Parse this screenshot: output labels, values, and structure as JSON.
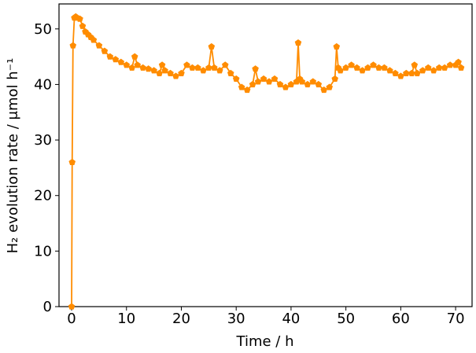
{
  "chart_data": {
    "type": "line",
    "xlabel": "Time / h",
    "ylabel": "H₂ evolution rate / μmol h⁻¹",
    "x": [
      0,
      0.1,
      0.25,
      0.5,
      0.75,
      1,
      1.5,
      2,
      2.5,
      3,
      3.5,
      4,
      5,
      6,
      7,
      8,
      9,
      10,
      11,
      11.5,
      12,
      13,
      14,
      15,
      16,
      16.5,
      17,
      18,
      19,
      20,
      21,
      22,
      23,
      24,
      25,
      25.5,
      26,
      27,
      28,
      29,
      30,
      31,
      32,
      33,
      33.5,
      34,
      35,
      36,
      37,
      38,
      39,
      40,
      41,
      41.3,
      41.6,
      42,
      43,
      44,
      45,
      46,
      47,
      48,
      48.3,
      48.6,
      49,
      50,
      51,
      52,
      53,
      54,
      55,
      56,
      57,
      58,
      59,
      60,
      61,
      62,
      62.5,
      63,
      64,
      65,
      66,
      67,
      68,
      69,
      70,
      70.5,
      71
    ],
    "series": [
      {
        "name": "H2",
        "color": "#ff8c00",
        "values": [
          0,
          26,
          47,
          52,
          52.2,
          52,
          51.8,
          50.5,
          49.5,
          49,
          48.5,
          48,
          47,
          46,
          45,
          44.5,
          44,
          43.5,
          43,
          45,
          43.5,
          43,
          42.8,
          42.5,
          42,
          43.5,
          42.5,
          42,
          41.5,
          42,
          43.5,
          43,
          43,
          42.5,
          43,
          46.8,
          43,
          42.5,
          43.5,
          42,
          41,
          39.5,
          39,
          40,
          42.8,
          40.5,
          41,
          40.5,
          41,
          40,
          39.5,
          40,
          40.5,
          47.5,
          41,
          40.5,
          40,
          40.5,
          40,
          39,
          39.5,
          41,
          46.8,
          43,
          42.5,
          43,
          43.5,
          43,
          42.5,
          43,
          43.5,
          43,
          43,
          42.5,
          42,
          41.5,
          42,
          42,
          43.5,
          42,
          42.5,
          43,
          42.5,
          43,
          43,
          43.5,
          43.5,
          44,
          43
        ]
      }
    ],
    "xlim": [
      -2.3,
      73.0
    ],
    "ylim": [
      0,
      54.5
    ],
    "xticks": [
      0,
      10,
      20,
      30,
      40,
      50,
      60,
      70
    ],
    "yticks": [
      0,
      10,
      20,
      30,
      40,
      50
    ]
  }
}
